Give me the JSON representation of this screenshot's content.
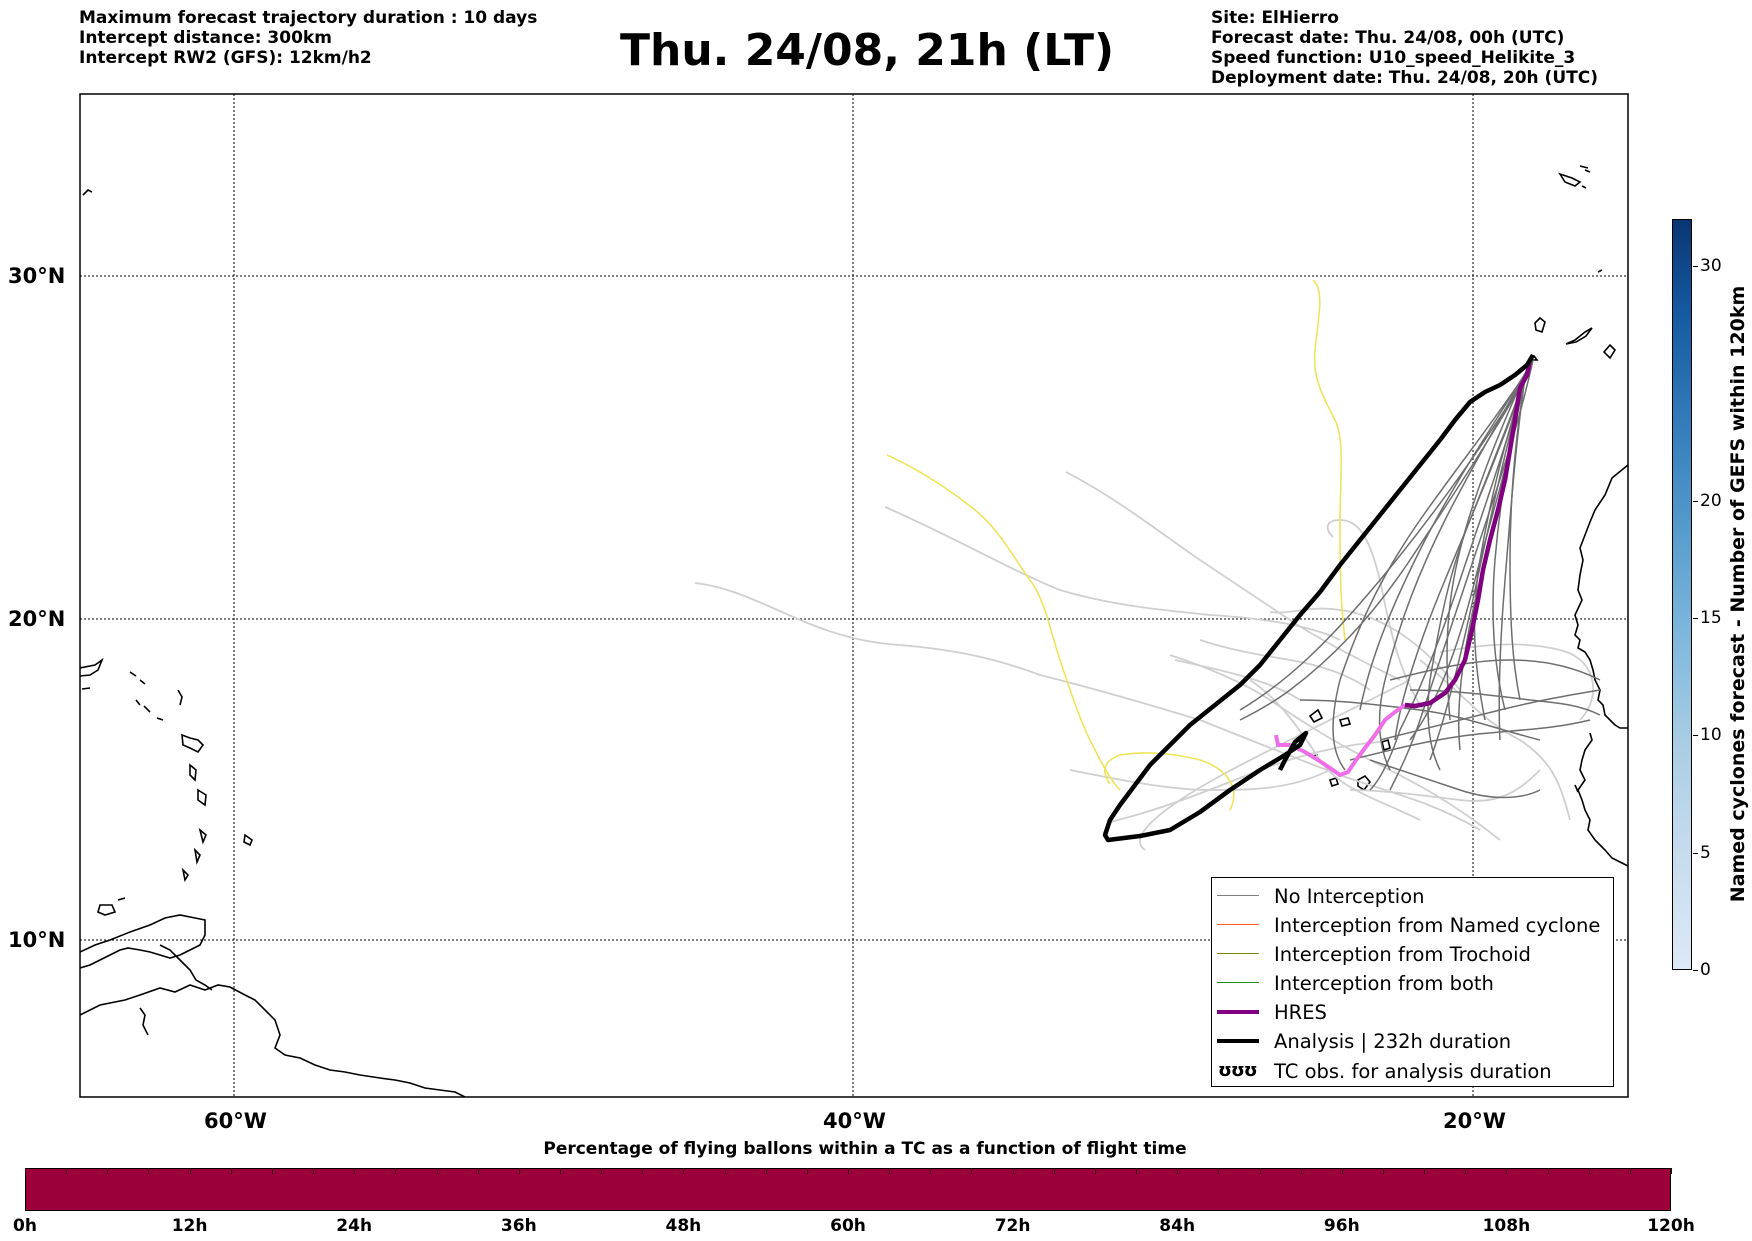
{
  "header": {
    "left_lines": [
      "Maximum forecast trajectory duration : 10 days",
      "Intercept distance: 300km",
      "Intercept RW2 (GFS):  12km/h2"
    ],
    "title": "Thu. 24/08, 21h (LT)",
    "right_lines": [
      "Site: ElHierro",
      "Forecast date: Thu. 24/08, 00h (UTC)",
      "Speed function: U10_speed_Helikite_3",
      "Deployment date: Thu. 24/08, 20h (UTC)"
    ]
  },
  "map": {
    "lat_labels": [
      "30°N",
      "20°N",
      "10°N"
    ],
    "lon_labels": [
      "60°W",
      "40°W",
      "20°W"
    ],
    "extent": {
      "lon_min": -65,
      "lon_max": -15,
      "lat_min": 5.3,
      "lat_max": 34.6
    },
    "colors": {
      "no_interception": "#7f7f7f",
      "no_interception_light": "#cdcdcd",
      "named_cyclone": "#ff5a1f",
      "trochoid": "#808000",
      "both": "#228b22",
      "hres": "#800080",
      "analysis": "#000000",
      "hres_early": "#ee6ee8",
      "yellow_track": "#eee35a"
    }
  },
  "legend": {
    "items": [
      {
        "label": "No Interception",
        "color": "#7f7f7f",
        "width": 1
      },
      {
        "label": "Interception from Named cyclone",
        "color": "#ff5a1f",
        "width": 1
      },
      {
        "label": "Interception from Trochoid",
        "color": "#808000",
        "width": 1
      },
      {
        "label": "Interception from both",
        "color": "#228b22",
        "width": 1
      },
      {
        "label": "HRES",
        "color": "#800080",
        "width": 4
      },
      {
        "label": "Analysis | 232h duration",
        "color": "#000000",
        "width": 4
      },
      {
        "label": "TC obs. for analysis duration",
        "symbol": "ʊʊʊ"
      }
    ]
  },
  "colorbar_right": {
    "title": "Named cyclones forecast - Number of GEFS within 120km",
    "ticks": [
      "0",
      "5",
      "10",
      "15",
      "20",
      "30"
    ],
    "tick_values": [
      0,
      5,
      10,
      15,
      20,
      30
    ],
    "max": 32
  },
  "colorbar_bottom": {
    "title": "Percentage of flying ballons within a TC as a function of flight time",
    "ticks": [
      "0h",
      "12h",
      "24h",
      "36h",
      "48h",
      "60h",
      "72h",
      "84h",
      "96h",
      "108h",
      "120h"
    ],
    "color": "#9b003a"
  }
}
